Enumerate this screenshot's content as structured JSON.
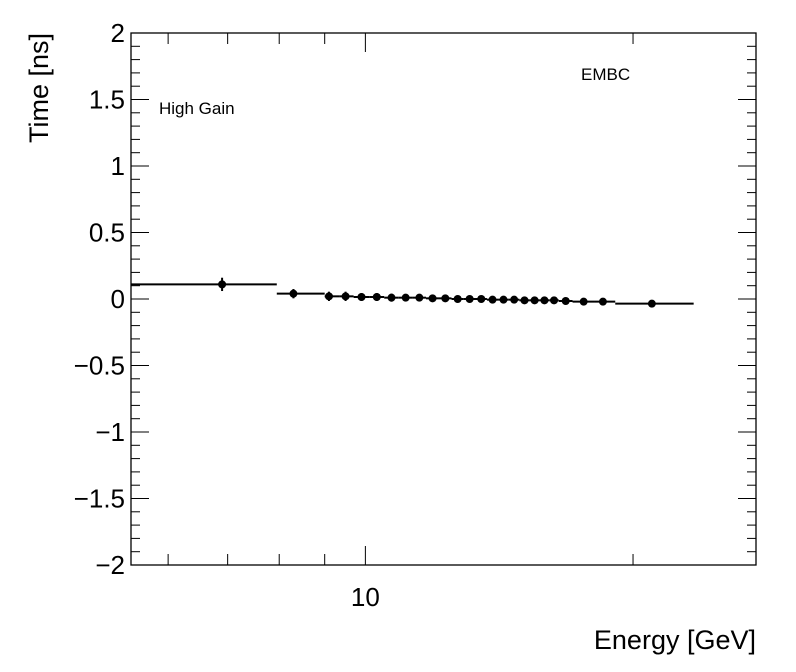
{
  "chart_data": {
    "type": "scatter",
    "xlabel": "Energy [GeV]",
    "ylabel": "Time [ns]",
    "x_scale": "log",
    "xlim": [
      5.45,
      27.5
    ],
    "ylim": [
      -2,
      2
    ],
    "x_tick_labels": [
      {
        "value": 10,
        "label": "10"
      }
    ],
    "y_tick_labels": [
      {
        "value": 2,
        "label": "2"
      },
      {
        "value": 1.5,
        "label": "1.5"
      },
      {
        "value": 1,
        "label": "1"
      },
      {
        "value": 0.5,
        "label": "0.5"
      },
      {
        "value": 0,
        "label": "0"
      },
      {
        "value": -0.5,
        "label": "−0.5"
      },
      {
        "value": -1,
        "label": "−1"
      },
      {
        "value": -1.5,
        "label": "−1.5"
      },
      {
        "value": -2,
        "label": "−2"
      }
    ],
    "annotations": [
      {
        "text": "High Gain",
        "position": "top-left"
      },
      {
        "text": "EMBC",
        "position": "top-right"
      }
    ],
    "series": [
      {
        "points": [
          {
            "x": 6.9,
            "y": 0.11,
            "xlo": 5.45,
            "xhi": 7.95,
            "yerr": 0.05
          },
          {
            "x": 8.3,
            "y": 0.04,
            "xlo": 7.95,
            "xhi": 9.0,
            "yerr": 0.035
          },
          {
            "x": 9.1,
            "y": 0.02,
            "xlo": 9.0,
            "xhi": 9.35,
            "yerr": 0.035
          },
          {
            "x": 9.5,
            "y": 0.02,
            "xlo": 9.35,
            "xhi": 9.7,
            "yerr": 0.035
          },
          {
            "x": 9.9,
            "y": 0.015,
            "xlo": 9.7,
            "xhi": 10.1,
            "yerr": 0.03
          },
          {
            "x": 10.3,
            "y": 0.015,
            "xlo": 10.1,
            "xhi": 10.5,
            "yerr": 0.03
          },
          {
            "x": 10.7,
            "y": 0.01,
            "xlo": 10.5,
            "xhi": 10.9,
            "yerr": 0.03
          },
          {
            "x": 11.1,
            "y": 0.01,
            "xlo": 10.9,
            "xhi": 11.3,
            "yerr": 0.025
          },
          {
            "x": 11.5,
            "y": 0.01,
            "xlo": 11.3,
            "xhi": 11.7,
            "yerr": 0.025
          },
          {
            "x": 11.9,
            "y": 0.005,
            "xlo": 11.7,
            "xhi": 12.1,
            "yerr": 0.025
          },
          {
            "x": 12.3,
            "y": 0.005,
            "xlo": 12.1,
            "xhi": 12.5,
            "yerr": 0.02
          },
          {
            "x": 12.7,
            "y": 0.0,
            "xlo": 12.5,
            "xhi": 12.9,
            "yerr": 0.02
          },
          {
            "x": 13.1,
            "y": 0.0,
            "xlo": 12.9,
            "xhi": 13.3,
            "yerr": 0.02
          },
          {
            "x": 13.5,
            "y": 0.0,
            "xlo": 13.3,
            "xhi": 13.7,
            "yerr": 0.02
          },
          {
            "x": 13.9,
            "y": -0.005,
            "xlo": 13.7,
            "xhi": 14.1,
            "yerr": 0.02
          },
          {
            "x": 14.3,
            "y": -0.005,
            "xlo": 14.1,
            "xhi": 14.5,
            "yerr": 0.02
          },
          {
            "x": 14.7,
            "y": -0.005,
            "xlo": 14.5,
            "xhi": 14.9,
            "yerr": 0.02
          },
          {
            "x": 15.1,
            "y": -0.01,
            "xlo": 14.9,
            "xhi": 15.3,
            "yerr": 0.02
          },
          {
            "x": 15.5,
            "y": -0.01,
            "xlo": 15.3,
            "xhi": 15.7,
            "yerr": 0.02
          },
          {
            "x": 15.9,
            "y": -0.01,
            "xlo": 15.7,
            "xhi": 16.1,
            "yerr": 0.02
          },
          {
            "x": 16.3,
            "y": -0.01,
            "xlo": 16.1,
            "xhi": 16.5,
            "yerr": 0.02
          },
          {
            "x": 16.8,
            "y": -0.015,
            "xlo": 16.5,
            "xhi": 17.1,
            "yerr": 0.02
          },
          {
            "x": 17.6,
            "y": -0.02,
            "xlo": 17.1,
            "xhi": 18.1,
            "yerr": 0.02
          },
          {
            "x": 18.5,
            "y": -0.02,
            "xlo": 18.1,
            "xhi": 19.1,
            "yerr": 0.02
          },
          {
            "x": 21.0,
            "y": -0.035,
            "xlo": 19.1,
            "xhi": 23.4,
            "yerr": 0.02
          }
        ]
      }
    ]
  }
}
